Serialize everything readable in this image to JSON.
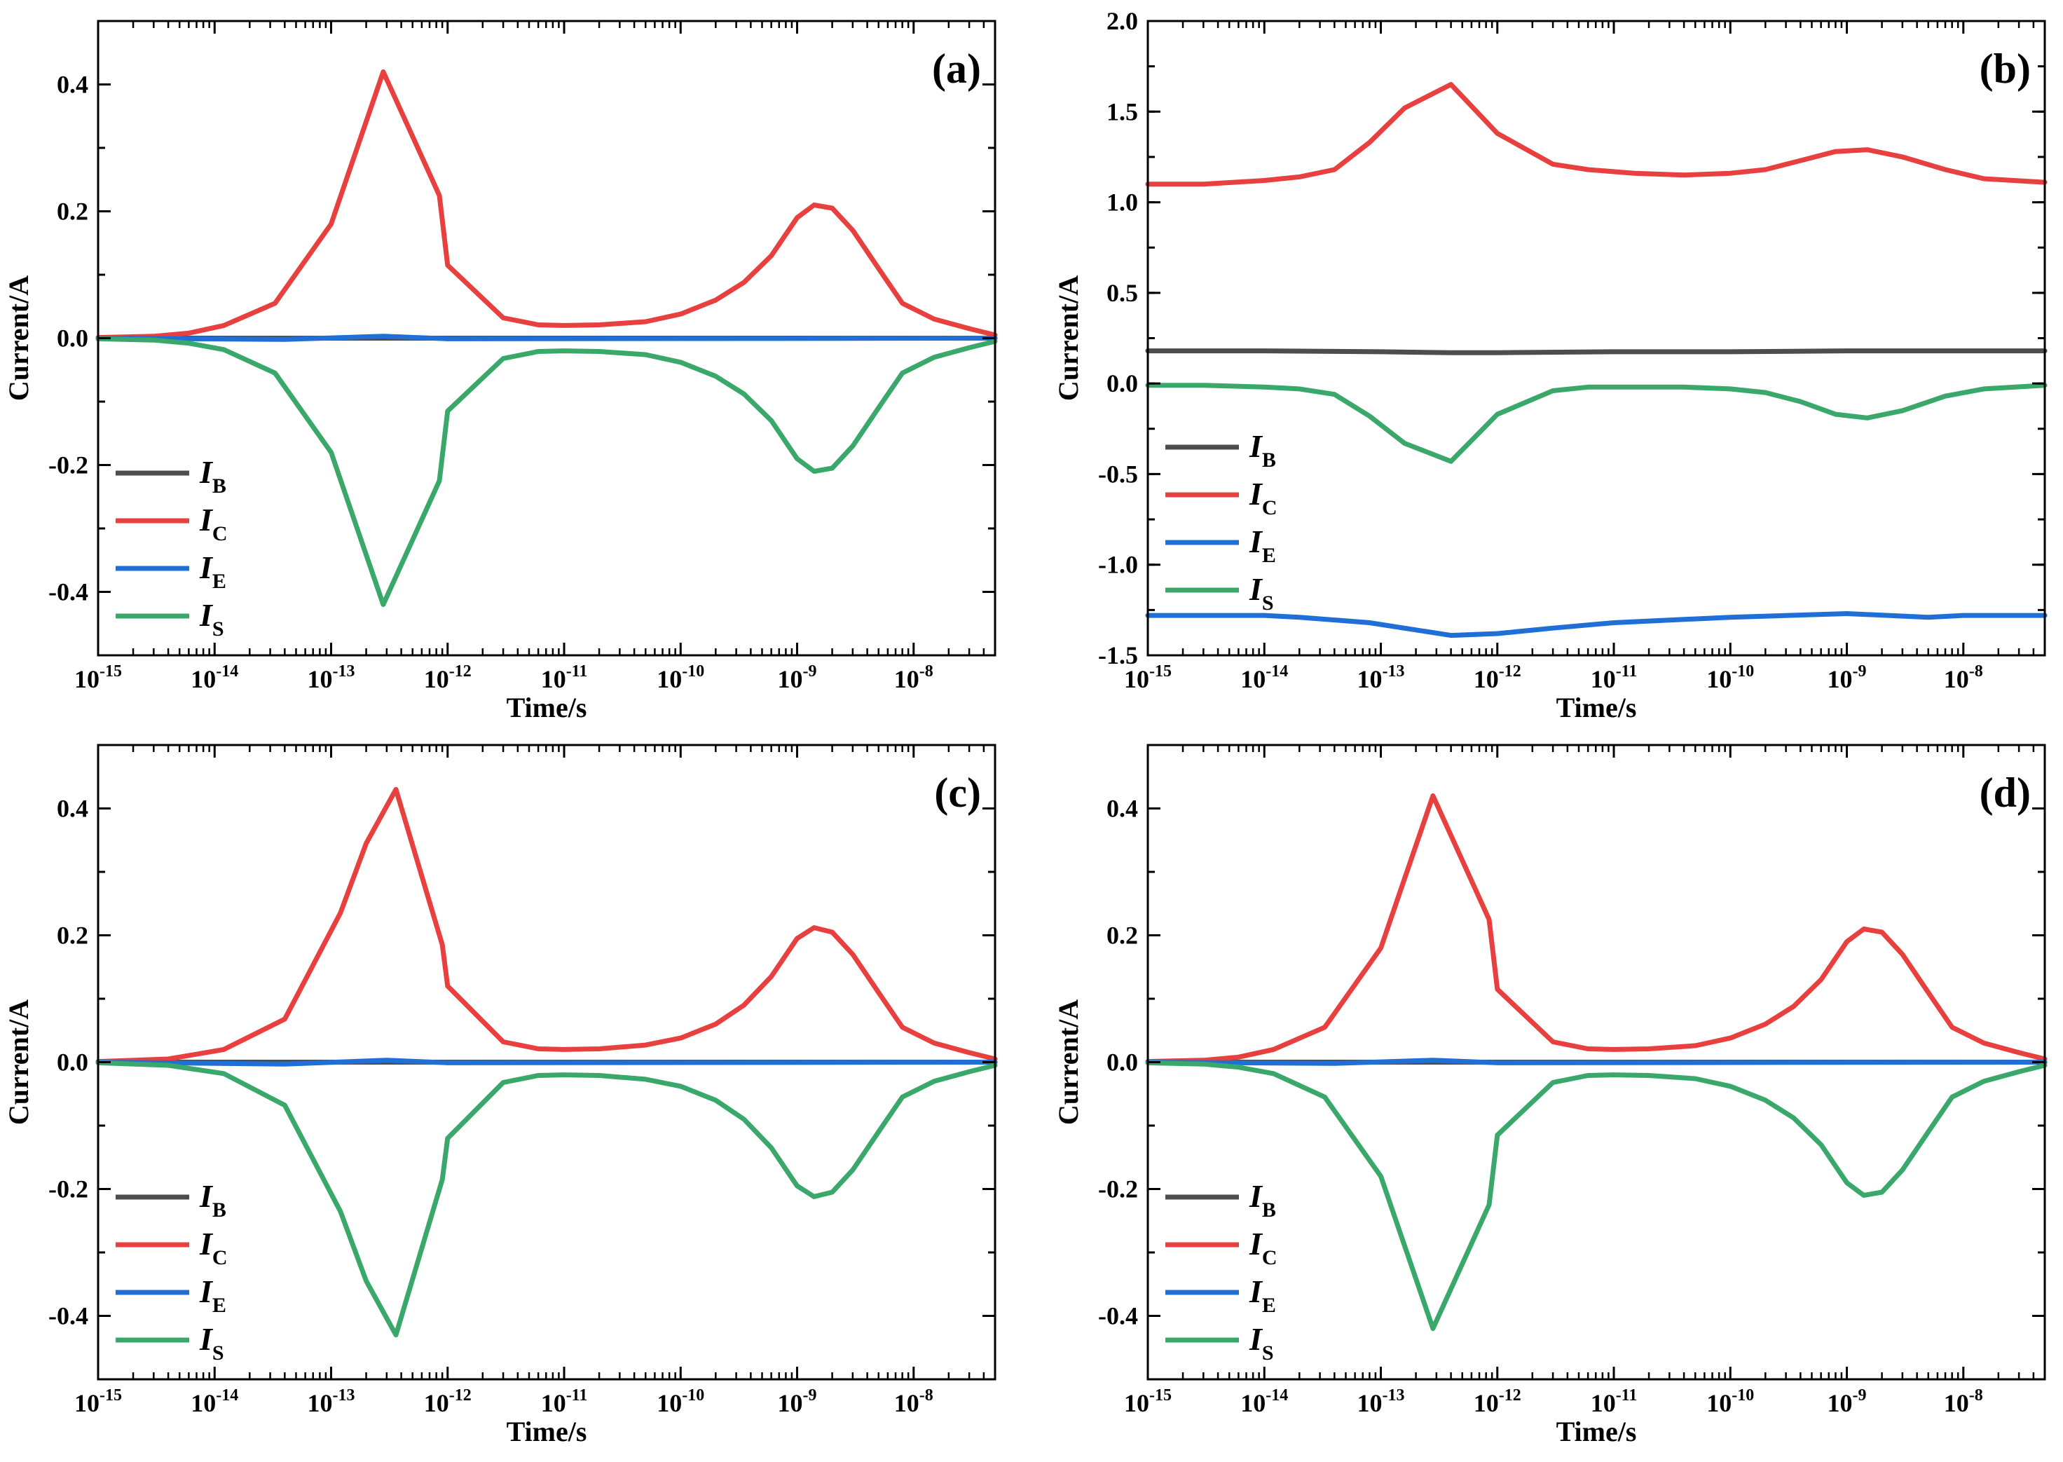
{
  "figure": {
    "panel_order": [
      "a",
      "b",
      "c",
      "d"
    ]
  },
  "chart_data": [
    {
      "type": "line",
      "panel": "(a)",
      "xlabel": "Time/s",
      "ylabel": "Current/A",
      "xscale": "log",
      "xlim": [
        1e-15,
        5e-08
      ],
      "ylim": [
        -0.5,
        0.5
      ],
      "yticks": [
        -0.4,
        -0.2,
        0.0,
        0.2,
        0.4
      ],
      "ytick_labels": [
        "-0.4",
        "-0.2",
        "0.0",
        "0.2",
        "0.4"
      ],
      "xticks": [
        -15,
        -14,
        -13,
        -12,
        -11,
        -10,
        -9,
        -8
      ],
      "xtick_labels": [
        {
          "base": "10",
          "exp": "-15"
        },
        {
          "base": "10",
          "exp": "-14"
        },
        {
          "base": "10",
          "exp": "-13"
        },
        {
          "base": "10",
          "exp": "-12"
        },
        {
          "base": "10",
          "exp": "-11"
        },
        {
          "base": "10",
          "exp": "-10"
        },
        {
          "base": "10",
          "exp": "-9"
        },
        {
          "base": "10",
          "exp": "-8"
        }
      ],
      "legend_position": "lower-left",
      "series": [
        {
          "name": "I",
          "sub": "B",
          "color": "#4d4d4d",
          "x": [
            1e-15,
            5e-08
          ],
          "y": [
            0.0,
            0.0
          ]
        },
        {
          "name": "I",
          "sub": "C",
          "color": "#e8403f",
          "x": [
            1e-15,
            3e-15,
            6e-15,
            1.2e-14,
            3.3e-14,
            1e-13,
            2.8e-13,
            8.5e-13,
            1e-12,
            3e-12,
            6e-12,
            1e-11,
            2e-11,
            5e-11,
            1e-10,
            2e-10,
            3.5e-10,
            6e-10,
            1e-09,
            1.4e-09,
            2e-09,
            3e-09,
            5e-09,
            8e-09,
            1.5e-08,
            3e-08,
            5e-08
          ],
          "y": [
            0.001,
            0.003,
            0.008,
            0.02,
            0.055,
            0.18,
            0.42,
            0.225,
            0.115,
            0.032,
            0.021,
            0.02,
            0.021,
            0.026,
            0.038,
            0.06,
            0.088,
            0.13,
            0.19,
            0.21,
            0.205,
            0.17,
            0.11,
            0.055,
            0.03,
            0.015,
            0.005
          ]
        },
        {
          "name": "I",
          "sub": "E",
          "color": "#1f6fd6",
          "x": [
            1e-15,
            4e-14,
            2.8e-13,
            1e-12,
            5e-08
          ],
          "y": [
            0.0,
            -0.002,
            0.003,
            -0.001,
            0.0
          ]
        },
        {
          "name": "I",
          "sub": "S",
          "color": "#3aa86b",
          "x": [
            1e-15,
            3e-15,
            6e-15,
            1.2e-14,
            3.3e-14,
            1e-13,
            2.8e-13,
            8.5e-13,
            1e-12,
            3e-12,
            6e-12,
            1e-11,
            2e-11,
            5e-11,
            1e-10,
            2e-10,
            3.5e-10,
            6e-10,
            1e-09,
            1.4e-09,
            2e-09,
            3e-09,
            5e-09,
            8e-09,
            1.5e-08,
            3e-08,
            5e-08
          ],
          "y": [
            -0.001,
            -0.003,
            -0.008,
            -0.018,
            -0.055,
            -0.18,
            -0.42,
            -0.225,
            -0.115,
            -0.032,
            -0.021,
            -0.02,
            -0.021,
            -0.026,
            -0.038,
            -0.06,
            -0.088,
            -0.13,
            -0.19,
            -0.21,
            -0.205,
            -0.17,
            -0.11,
            -0.055,
            -0.03,
            -0.015,
            -0.005
          ]
        }
      ]
    },
    {
      "type": "line",
      "panel": "(b)",
      "xlabel": "Time/s",
      "ylabel": "Current/A",
      "xscale": "log",
      "xlim": [
        1e-15,
        5e-08
      ],
      "ylim": [
        -1.5,
        2.0
      ],
      "yticks": [
        -1.5,
        -1.0,
        -0.5,
        0.0,
        0.5,
        1.0,
        1.5,
        2.0
      ],
      "ytick_labels": [
        "-1.5",
        "-1.0",
        "-0.5",
        "0.0",
        "0.5",
        "1.0",
        "1.5",
        "2.0"
      ],
      "xticks": [
        -15,
        -14,
        -13,
        -12,
        -11,
        -10,
        -9,
        -8
      ],
      "xtick_labels": [
        {
          "base": "10",
          "exp": "-15"
        },
        {
          "base": "10",
          "exp": "-14"
        },
        {
          "base": "10",
          "exp": "-13"
        },
        {
          "base": "10",
          "exp": "-12"
        },
        {
          "base": "10",
          "exp": "-11"
        },
        {
          "base": "10",
          "exp": "-10"
        },
        {
          "base": "10",
          "exp": "-9"
        },
        {
          "base": "10",
          "exp": "-8"
        }
      ],
      "legend_position": "lower-left",
      "series": [
        {
          "name": "I",
          "sub": "B",
          "color": "#4d4d4d",
          "x": [
            1e-15,
            1e-14,
            1e-13,
            4e-13,
            1e-12,
            1e-11,
            1e-10,
            1e-09,
            5e-08
          ],
          "y": [
            0.18,
            0.18,
            0.175,
            0.17,
            0.17,
            0.175,
            0.175,
            0.18,
            0.18
          ]
        },
        {
          "name": "I",
          "sub": "C",
          "color": "#e8403f",
          "x": [
            1e-15,
            3e-15,
            1e-14,
            2e-14,
            4e-14,
            8e-14,
            1.6e-13,
            4e-13,
            1e-12,
            3e-12,
            6e-12,
            1.5e-11,
            4e-11,
            1e-10,
            2e-10,
            4e-10,
            8e-10,
            1.5e-09,
            3e-09,
            7e-09,
            1.5e-08,
            5e-08
          ],
          "y": [
            1.1,
            1.1,
            1.12,
            1.14,
            1.18,
            1.33,
            1.52,
            1.65,
            1.38,
            1.21,
            1.18,
            1.16,
            1.15,
            1.16,
            1.18,
            1.23,
            1.28,
            1.29,
            1.25,
            1.18,
            1.13,
            1.11
          ]
        },
        {
          "name": "I",
          "sub": "E",
          "color": "#1f6fd6",
          "x": [
            1e-15,
            1e-14,
            2e-14,
            8e-14,
            4e-13,
            1e-12,
            3e-12,
            1e-11,
            1e-10,
            1e-09,
            5e-09,
            1e-08,
            5e-08
          ],
          "y": [
            -1.28,
            -1.28,
            -1.29,
            -1.32,
            -1.39,
            -1.38,
            -1.35,
            -1.32,
            -1.29,
            -1.27,
            -1.29,
            -1.28,
            -1.28
          ]
        },
        {
          "name": "I",
          "sub": "S",
          "color": "#3aa86b",
          "x": [
            1e-15,
            3e-15,
            1e-14,
            2e-14,
            4e-14,
            8e-14,
            1.6e-13,
            4e-13,
            1e-12,
            3e-12,
            6e-12,
            1.5e-11,
            4e-11,
            1e-10,
            2e-10,
            4e-10,
            8e-10,
            1.5e-09,
            3e-09,
            7e-09,
            1.5e-08,
            5e-08
          ],
          "y": [
            -0.01,
            -0.01,
            -0.02,
            -0.03,
            -0.06,
            -0.18,
            -0.33,
            -0.43,
            -0.17,
            -0.04,
            -0.02,
            -0.02,
            -0.02,
            -0.03,
            -0.05,
            -0.1,
            -0.17,
            -0.19,
            -0.15,
            -0.07,
            -0.03,
            -0.01
          ]
        }
      ]
    },
    {
      "type": "line",
      "panel": "(c)",
      "xlabel": "Time/s",
      "ylabel": "Current/A",
      "xscale": "log",
      "xlim": [
        1e-15,
        5e-08
      ],
      "ylim": [
        -0.5,
        0.5
      ],
      "yticks": [
        -0.4,
        -0.2,
        0.0,
        0.2,
        0.4
      ],
      "ytick_labels": [
        "-0.4",
        "-0.2",
        "0.0",
        "0.2",
        "0.4"
      ],
      "xticks": [
        -15,
        -14,
        -13,
        -12,
        -11,
        -10,
        -9,
        -8
      ],
      "xtick_labels": [
        {
          "base": "10",
          "exp": "-15"
        },
        {
          "base": "10",
          "exp": "-14"
        },
        {
          "base": "10",
          "exp": "-13"
        },
        {
          "base": "10",
          "exp": "-12"
        },
        {
          "base": "10",
          "exp": "-11"
        },
        {
          "base": "10",
          "exp": "-10"
        },
        {
          "base": "10",
          "exp": "-9"
        },
        {
          "base": "10",
          "exp": "-8"
        }
      ],
      "legend_position": "lower-left",
      "series": [
        {
          "name": "I",
          "sub": "B",
          "color": "#4d4d4d",
          "x": [
            1e-15,
            5e-08
          ],
          "y": [
            0.0,
            0.0
          ]
        },
        {
          "name": "I",
          "sub": "C",
          "color": "#e8403f",
          "x": [
            1e-15,
            4e-15,
            1.2e-14,
            4e-14,
            1.2e-13,
            2e-13,
            3.6e-13,
            9e-13,
            1e-12,
            3e-12,
            6e-12,
            1e-11,
            2e-11,
            5e-11,
            1e-10,
            2e-10,
            3.5e-10,
            6e-10,
            1e-09,
            1.4e-09,
            2e-09,
            3e-09,
            5e-09,
            8e-09,
            1.5e-08,
            3e-08,
            5e-08
          ],
          "y": [
            0.001,
            0.005,
            0.02,
            0.068,
            0.235,
            0.345,
            0.43,
            0.185,
            0.12,
            0.032,
            0.021,
            0.02,
            0.021,
            0.027,
            0.038,
            0.06,
            0.09,
            0.135,
            0.195,
            0.212,
            0.205,
            0.17,
            0.11,
            0.055,
            0.03,
            0.015,
            0.005
          ]
        },
        {
          "name": "I",
          "sub": "E",
          "color": "#1f6fd6",
          "x": [
            1e-15,
            4e-14,
            3e-13,
            1e-12,
            5e-08
          ],
          "y": [
            0.0,
            -0.003,
            0.003,
            -0.001,
            0.0
          ]
        },
        {
          "name": "I",
          "sub": "S",
          "color": "#3aa86b",
          "x": [
            1e-15,
            4e-15,
            1.2e-14,
            4e-14,
            1.2e-13,
            2e-13,
            3.6e-13,
            9e-13,
            1e-12,
            3e-12,
            6e-12,
            1e-11,
            2e-11,
            5e-11,
            1e-10,
            2e-10,
            3.5e-10,
            6e-10,
            1e-09,
            1.4e-09,
            2e-09,
            3e-09,
            5e-09,
            8e-09,
            1.5e-08,
            3e-08,
            5e-08
          ],
          "y": [
            -0.001,
            -0.005,
            -0.018,
            -0.068,
            -0.235,
            -0.345,
            -0.43,
            -0.185,
            -0.12,
            -0.032,
            -0.021,
            -0.02,
            -0.021,
            -0.027,
            -0.038,
            -0.06,
            -0.09,
            -0.135,
            -0.195,
            -0.212,
            -0.205,
            -0.17,
            -0.11,
            -0.055,
            -0.03,
            -0.015,
            -0.005
          ]
        }
      ]
    },
    {
      "type": "line",
      "panel": "(d)",
      "xlabel": "Time/s",
      "ylabel": "Current/A",
      "xscale": "log",
      "xlim": [
        1e-15,
        5e-08
      ],
      "ylim": [
        -0.5,
        0.5
      ],
      "yticks": [
        -0.4,
        -0.2,
        0.0,
        0.2,
        0.4
      ],
      "ytick_labels": [
        "-0.4",
        "-0.2",
        "0.0",
        "0.2",
        "0.4"
      ],
      "xticks": [
        -15,
        -14,
        -13,
        -12,
        -11,
        -10,
        -9,
        -8
      ],
      "xtick_labels": [
        {
          "base": "10",
          "exp": "-15"
        },
        {
          "base": "10",
          "exp": "-14"
        },
        {
          "base": "10",
          "exp": "-13"
        },
        {
          "base": "10",
          "exp": "-12"
        },
        {
          "base": "10",
          "exp": "-11"
        },
        {
          "base": "10",
          "exp": "-10"
        },
        {
          "base": "10",
          "exp": "-9"
        },
        {
          "base": "10",
          "exp": "-8"
        }
      ],
      "legend_position": "lower-left",
      "series": [
        {
          "name": "I",
          "sub": "B",
          "color": "#4d4d4d",
          "x": [
            1e-15,
            5e-08
          ],
          "y": [
            0.0,
            0.0
          ]
        },
        {
          "name": "I",
          "sub": "C",
          "color": "#e8403f",
          "x": [
            1e-15,
            3e-15,
            6e-15,
            1.2e-14,
            3.3e-14,
            1e-13,
            2.8e-13,
            8.5e-13,
            1e-12,
            3e-12,
            6e-12,
            1e-11,
            2e-11,
            5e-11,
            1e-10,
            2e-10,
            3.5e-10,
            6e-10,
            1e-09,
            1.4e-09,
            2e-09,
            3e-09,
            5e-09,
            8e-09,
            1.5e-08,
            3e-08,
            5e-08
          ],
          "y": [
            0.001,
            0.003,
            0.008,
            0.02,
            0.055,
            0.18,
            0.42,
            0.225,
            0.115,
            0.032,
            0.021,
            0.02,
            0.021,
            0.026,
            0.038,
            0.06,
            0.088,
            0.13,
            0.19,
            0.21,
            0.205,
            0.17,
            0.11,
            0.055,
            0.03,
            0.015,
            0.005
          ]
        },
        {
          "name": "I",
          "sub": "E",
          "color": "#1f6fd6",
          "x": [
            1e-15,
            4e-14,
            2.8e-13,
            1e-12,
            5e-08
          ],
          "y": [
            0.0,
            -0.002,
            0.003,
            -0.001,
            0.0
          ]
        },
        {
          "name": "I",
          "sub": "S",
          "color": "#3aa86b",
          "x": [
            1e-15,
            3e-15,
            6e-15,
            1.2e-14,
            3.3e-14,
            1e-13,
            2.8e-13,
            8.5e-13,
            1e-12,
            3e-12,
            6e-12,
            1e-11,
            2e-11,
            5e-11,
            1e-10,
            2e-10,
            3.5e-10,
            6e-10,
            1e-09,
            1.4e-09,
            2e-09,
            3e-09,
            5e-09,
            8e-09,
            1.5e-08,
            3e-08,
            5e-08
          ],
          "y": [
            -0.001,
            -0.003,
            -0.008,
            -0.018,
            -0.055,
            -0.18,
            -0.42,
            -0.225,
            -0.115,
            -0.032,
            -0.021,
            -0.02,
            -0.021,
            -0.026,
            -0.038,
            -0.06,
            -0.088,
            -0.13,
            -0.19,
            -0.21,
            -0.205,
            -0.17,
            -0.11,
            -0.055,
            -0.03,
            -0.015,
            -0.005
          ]
        }
      ]
    }
  ]
}
